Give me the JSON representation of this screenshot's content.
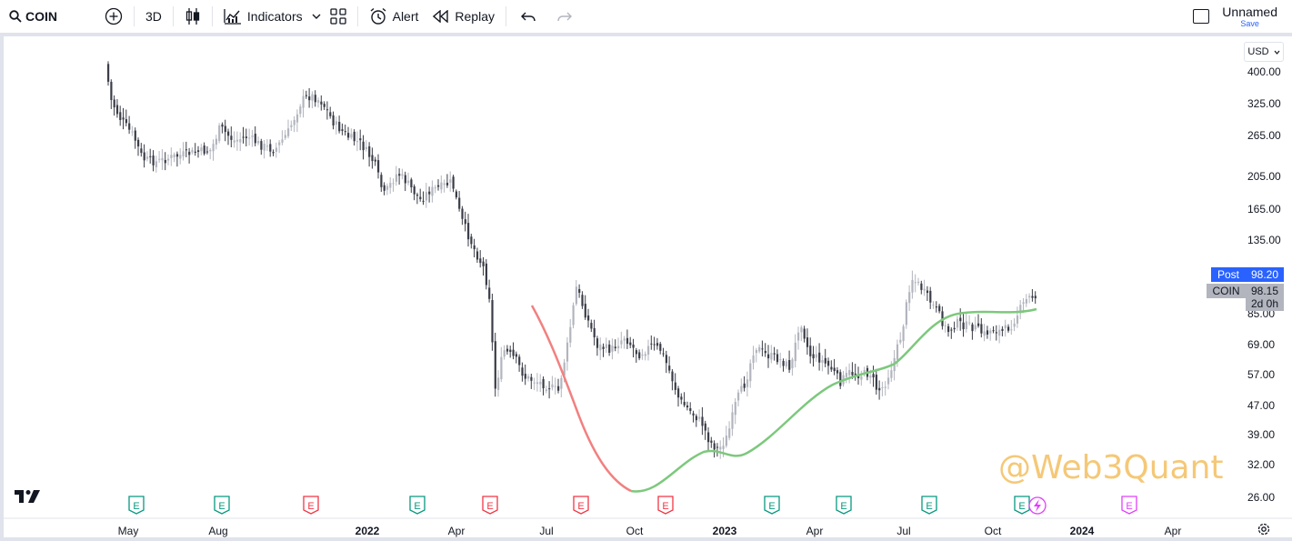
{
  "toolbar": {
    "symbol": "COIN",
    "interval": "3D",
    "indicators_label": "Indicators",
    "alert_label": "Alert",
    "replay_label": "Replay",
    "layout_name": "Unnamed",
    "save_label": "Save"
  },
  "price_axis": {
    "currency": "USD",
    "labels": [
      "400.00",
      "325.00",
      "265.00",
      "205.00",
      "165.00",
      "135.00",
      "85.00",
      "69.00",
      "57.00",
      "47.00",
      "39.00",
      "32.00",
      "26.00"
    ]
  },
  "time_axis": {
    "labels": [
      {
        "text": "May",
        "bold": false
      },
      {
        "text": "Aug",
        "bold": false
      },
      {
        "text": "2022",
        "bold": true
      },
      {
        "text": "Apr",
        "bold": false
      },
      {
        "text": "Jul",
        "bold": false
      },
      {
        "text": "Oct",
        "bold": false
      },
      {
        "text": "2023",
        "bold": true
      },
      {
        "text": "Apr",
        "bold": false
      },
      {
        "text": "Jul",
        "bold": false
      },
      {
        "text": "Oct",
        "bold": false
      },
      {
        "text": "2024",
        "bold": true
      },
      {
        "text": "Apr",
        "bold": false
      }
    ]
  },
  "markers": {
    "post_label": "Post",
    "post_price": "98.20",
    "symbol_label": "COIN",
    "last_price": "98.15",
    "countdown": "2d 0h"
  },
  "watermark": "@Web3Quant",
  "earnings_marker_letter": "E",
  "colors": {
    "down_candle": "#3a3d47",
    "up_candle": "#b2b5be",
    "trend_down": "#f28080",
    "trend_up": "#7dc87d",
    "earnings_green": "#089981",
    "earnings_red": "#f23645",
    "earnings_future": "#e040fb",
    "accent": "#2962ff"
  },
  "icons": {
    "symbol_search": "search-icon",
    "compare": "plus-circle-icon",
    "chart_type": "candles-icon",
    "indicators": "indicators-icon",
    "templates": "grid-icon",
    "alert": "alarm-icon",
    "replay": "rewind-icon",
    "undo": "undo-icon",
    "redo": "redo-icon",
    "layout": "layout-icon",
    "settings": "gear-icon",
    "dividends": "lightning-icon",
    "logo": "tradingview-logo"
  }
}
